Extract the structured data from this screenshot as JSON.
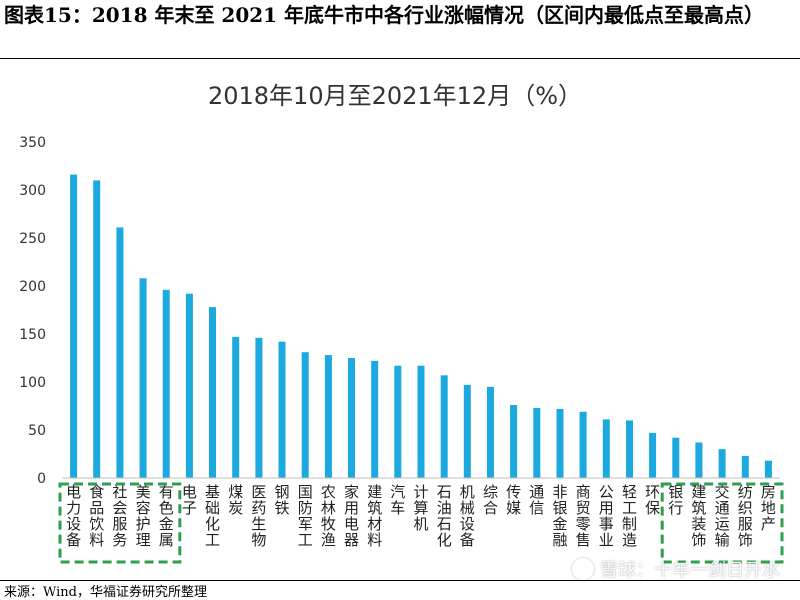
{
  "figure_title": "图表15：2018 年末至 2021 年底牛市中各行业涨幅情况（区间内最低点至最高点）",
  "source": "来源：Wind，华福证券研究所整理",
  "watermark": "雪球：十年一剑日开水",
  "colors": {
    "bar": "#1BA9E0",
    "highlight_box": "#2E9E4F",
    "axis": "#BFBFBF"
  },
  "chart_data": {
    "type": "bar",
    "title": "2018年10月至2021年12月（%）",
    "ylim": [
      0,
      350
    ],
    "yticks": [
      "0",
      "50",
      "100",
      "150",
      "200",
      "250",
      "300",
      "350"
    ],
    "grid": false,
    "categories": [
      "电力设备",
      "食品饮料",
      "社会服务",
      "美容护理",
      "有色金属",
      "电子",
      "基础化工",
      "煤炭",
      "医药生物",
      "钢铁",
      "国防军工",
      "农林牧渔",
      "家用电器",
      "建筑材料",
      "汽车",
      "计算机",
      "石油石化",
      "机械设备",
      "综合",
      "传媒",
      "通信",
      "非银金融",
      "商贸零售",
      "公用事业",
      "轻工制造",
      "环保",
      "银行",
      "建筑装饰",
      "交通运输",
      "纺织服饰",
      "房地产"
    ],
    "values": [
      316,
      310,
      261,
      208,
      196,
      192,
      178,
      147,
      146,
      142,
      131,
      128,
      125,
      122,
      117,
      117,
      107,
      97,
      95,
      76,
      73,
      72,
      69,
      61,
      60,
      47,
      42,
      37,
      30,
      23,
      18
    ],
    "highlight_groups": [
      {
        "start": 0,
        "end": 4
      },
      {
        "start": 26,
        "end": 30
      }
    ]
  }
}
